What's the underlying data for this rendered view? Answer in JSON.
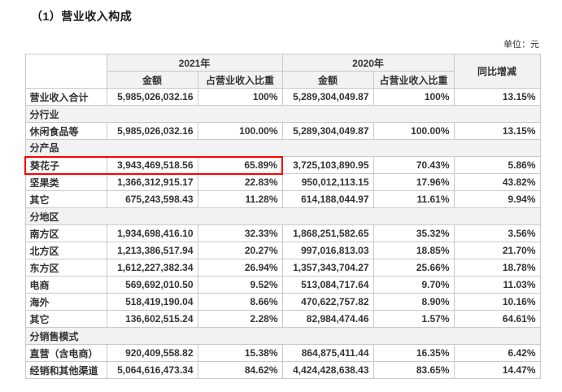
{
  "page": {
    "title": "（1）营业收入构成",
    "unit_label": "单位：元"
  },
  "colors": {
    "highlight_border": "#ff0000",
    "header_background": "#f2f2f2",
    "table_border": "#c9c9c9",
    "text": "#333333"
  },
  "table": {
    "year_2021_header": "2021年",
    "year_2020_header": "2020年",
    "amount_header": "金额",
    "ratio_header": "占营业收入比重",
    "yoy_header": "同比增减",
    "rows": [
      {
        "type": "data",
        "label": "营业收入合计",
        "amount_2021": "5,985,026,032.16",
        "ratio_2021": "100%",
        "amount_2020": "5,289,304,049.87",
        "ratio_2020": "100%",
        "yoy": "13.15%"
      },
      {
        "type": "section",
        "label": "分行业"
      },
      {
        "type": "data",
        "label": "休闲食品等",
        "amount_2021": "5,985,026,032.16",
        "ratio_2021": "100.00%",
        "amount_2020": "5,289,304,049.87",
        "ratio_2020": "100.00%",
        "yoy": "13.15%"
      },
      {
        "type": "section",
        "label": "分产品"
      },
      {
        "type": "data",
        "label": "葵花子",
        "highlighted": true,
        "amount_2021": "3,943,469,518.56",
        "ratio_2021": "65.89%",
        "amount_2020": "3,725,103,890.95",
        "ratio_2020": "70.43%",
        "yoy": "5.86%"
      },
      {
        "type": "data",
        "label": "坚果类",
        "amount_2021": "1,366,312,915.17",
        "ratio_2021": "22.83%",
        "amount_2020": "950,012,113.15",
        "ratio_2020": "17.96%",
        "yoy": "43.82%"
      },
      {
        "type": "data",
        "label": "其它",
        "amount_2021": "675,243,598.43",
        "ratio_2021": "11.28%",
        "amount_2020": "614,188,044.97",
        "ratio_2020": "11.61%",
        "yoy": "9.94%"
      },
      {
        "type": "section",
        "label": "分地区"
      },
      {
        "type": "data",
        "label": "南方区",
        "amount_2021": "1,934,698,416.10",
        "ratio_2021": "32.33%",
        "amount_2020": "1,868,251,582.65",
        "ratio_2020": "35.32%",
        "yoy": "3.56%"
      },
      {
        "type": "data",
        "label": "北方区",
        "amount_2021": "1,213,386,517.94",
        "ratio_2021": "20.27%",
        "amount_2020": "997,016,813.03",
        "ratio_2020": "18.85%",
        "yoy": "21.70%"
      },
      {
        "type": "data",
        "label": "东方区",
        "amount_2021": "1,612,227,382.34",
        "ratio_2021": "26.94%",
        "amount_2020": "1,357,343,704.27",
        "ratio_2020": "25.66%",
        "yoy": "18.78%"
      },
      {
        "type": "data",
        "label": "电商",
        "amount_2021": "569,692,010.50",
        "ratio_2021": "9.52%",
        "amount_2020": "513,084,717.64",
        "ratio_2020": "9.70%",
        "yoy": "11.03%"
      },
      {
        "type": "data",
        "label": "海外",
        "amount_2021": "518,419,190.04",
        "ratio_2021": "8.66%",
        "amount_2020": "470,622,757.82",
        "ratio_2020": "8.90%",
        "yoy": "10.16%"
      },
      {
        "type": "data",
        "label": "其它",
        "amount_2021": "136,602,515.24",
        "ratio_2021": "2.28%",
        "amount_2020": "82,984,474.46",
        "ratio_2020": "1.57%",
        "yoy": "64.61%"
      },
      {
        "type": "section",
        "label": "分销售模式"
      },
      {
        "type": "data",
        "label": "直营（含电商）",
        "amount_2021": "920,409,558.82",
        "ratio_2021": "15.38%",
        "amount_2020": "864,875,411.44",
        "ratio_2020": "16.35%",
        "yoy": "6.42%"
      },
      {
        "type": "data",
        "label": "经销和其他渠道",
        "amount_2021": "5,064,616,473.34",
        "ratio_2021": "84.62%",
        "amount_2020": "4,424,428,638.43",
        "ratio_2020": "83.65%",
        "yoy": "14.47%"
      }
    ]
  }
}
